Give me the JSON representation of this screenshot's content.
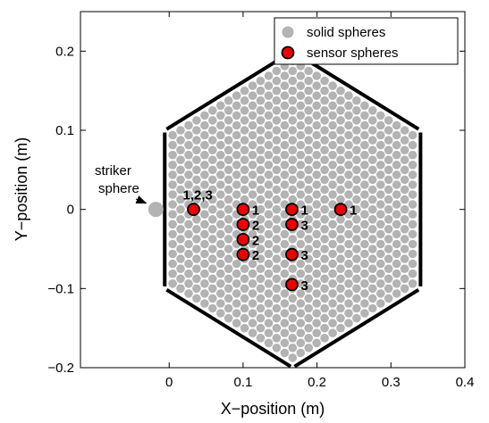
{
  "chart_data": {
    "type": "scatter",
    "xlabel": "X−position (m)",
    "ylabel": "Y−position (m)",
    "xlim": [
      -0.12,
      0.4
    ],
    "ylim": [
      -0.2,
      0.25
    ],
    "xticks": [
      0,
      0.1,
      0.2,
      0.3,
      0.4
    ],
    "xtick_labels": [
      "0",
      "0.1",
      "0.2",
      "0.3",
      "0.4"
    ],
    "yticks": [
      -0.2,
      -0.1,
      0,
      0.1,
      0.2
    ],
    "ytick_labels": [
      "−0.2",
      "−0.1",
      "0",
      "0.1",
      "0.2"
    ],
    "grid": false,
    "legend_position": "top-right",
    "legend": [
      {
        "label": "solid spheres",
        "marker": "gray-circle"
      },
      {
        "label": "sensor spheres",
        "marker": "red-circle"
      }
    ],
    "hexagon": {
      "vertices": [
        [
          0.167,
          0.2
        ],
        [
          0.34,
          0.1
        ],
        [
          0.34,
          -0.1
        ],
        [
          0.167,
          -0.2
        ],
        [
          -0.006,
          -0.1
        ],
        [
          -0.006,
          0.1
        ]
      ],
      "sphere_spacing": 0.0125
    },
    "striker_sphere": {
      "x": -0.018,
      "y": 0.0
    },
    "sensor_spheres": [
      {
        "x": 0.033,
        "y": 0.0,
        "label": "1,2,3"
      },
      {
        "x": 0.1,
        "y": 0.0,
        "label": "1"
      },
      {
        "x": 0.1,
        "y": -0.019,
        "label": "2"
      },
      {
        "x": 0.1,
        "y": -0.038,
        "label": "2"
      },
      {
        "x": 0.1,
        "y": -0.057,
        "label": "2"
      },
      {
        "x": 0.166,
        "y": 0.0,
        "label": "1"
      },
      {
        "x": 0.166,
        "y": -0.019,
        "label": "3"
      },
      {
        "x": 0.166,
        "y": -0.057,
        "label": "3"
      },
      {
        "x": 0.166,
        "y": -0.095,
        "label": "3"
      },
      {
        "x": 0.232,
        "y": 0.0,
        "label": "1"
      }
    ],
    "annotations": [
      {
        "text_lines": [
          "striker",
          "sphere"
        ],
        "arrow_to": "striker_sphere"
      }
    ],
    "colors": {
      "solid": "#b3b3b3",
      "sensor_fill": "#ee0000",
      "sensor_edge": "#000000",
      "hex_edge": "#000000"
    }
  }
}
